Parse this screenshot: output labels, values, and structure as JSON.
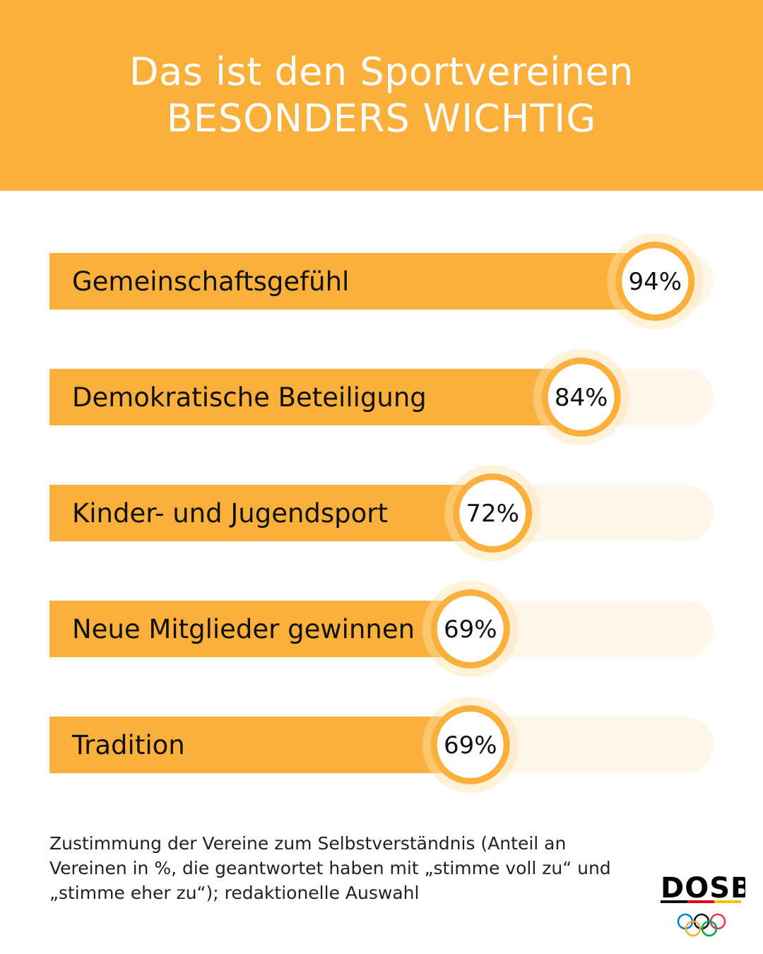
{
  "header": {
    "line1": "Das ist den Sportvereinen",
    "line2": "BESONDERS WICHTIG"
  },
  "colors": {
    "header_bg": "#FBB03B",
    "bar_fill": "#FBB03B",
    "track": "#FEF6E8",
    "circle_ring": "#FBB03B",
    "circle_halo": "#FDE3B0",
    "text": "#111111"
  },
  "chart_data": {
    "type": "bar",
    "orientation": "horizontal",
    "categories": [
      "Gemeinschaftsgefühl",
      "Demokratische Beteiligung",
      "Kinder- und Jugendsport",
      "Neue Mitglieder gewinnen",
      "Tradition"
    ],
    "values": [
      94,
      84,
      72,
      69,
      69
    ],
    "value_labels": [
      "94%",
      "84%",
      "72%",
      "69%",
      "69%"
    ],
    "unit": "%",
    "xlim": [
      0,
      100
    ]
  },
  "footnote": "Zustimmung der Vereine zum Selbstverständnis (Anteil an Vereinen in %, die geantwortet haben mit „stimme voll zu“ und „stimme eher zu“); redaktionelle Auswahl",
  "logo": {
    "text": "DOSB",
    "icon": "olympic-rings-icon"
  }
}
